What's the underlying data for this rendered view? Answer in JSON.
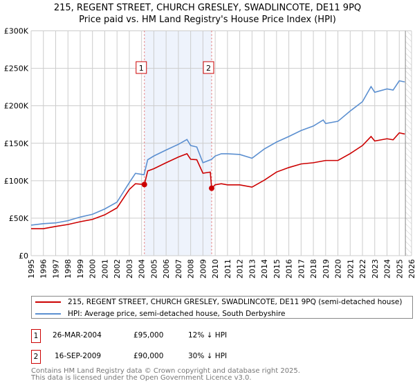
{
  "chart_data": {
    "type": "line",
    "title": "215, REGENT STREET, CHURCH GRESLEY, SWADLINCOTE, DE11 9PQ",
    "subtitle": "Price paid vs. HM Land Registry's House Price Index (HPI)",
    "xlim": [
      1995,
      2026
    ],
    "ylim": [
      0,
      300000
    ],
    "x_ticks": [
      "1995",
      "1996",
      "1997",
      "1998",
      "1999",
      "2000",
      "2001",
      "2002",
      "2003",
      "2004",
      "2005",
      "2006",
      "2007",
      "2008",
      "2009",
      "2010",
      "2011",
      "2012",
      "2013",
      "2014",
      "2015",
      "2016",
      "2017",
      "2018",
      "2019",
      "2020",
      "2021",
      "2022",
      "2023",
      "2024",
      "2025",
      "2026"
    ],
    "y_ticks": [
      {
        "v": 0,
        "label": "£0"
      },
      {
        "v": 50000,
        "label": "£50K"
      },
      {
        "v": 100000,
        "label": "£100K"
      },
      {
        "v": 150000,
        "label": "£150K"
      },
      {
        "v": 200000,
        "label": "£200K"
      },
      {
        "v": 250000,
        "label": "£250K"
      },
      {
        "v": 300000,
        "label": "£300K"
      }
    ],
    "grid": true,
    "series": [
      {
        "name": "215, REGENT STREET, CHURCH GRESLEY, SWADLINCOTE, DE11 9PQ (semi-detached house)",
        "color": "#cc0000",
        "points": [
          [
            1995,
            36000
          ],
          [
            1996,
            36000
          ],
          [
            1997,
            39000
          ],
          [
            1998,
            41600
          ],
          [
            1999,
            45300
          ],
          [
            2000,
            48400
          ],
          [
            2001,
            54500
          ],
          [
            2002,
            63800
          ],
          [
            2003,
            88400
          ],
          [
            2003.5,
            96000
          ],
          [
            2004.23,
            95000
          ],
          [
            2004.5,
            113000
          ],
          [
            2005,
            116000
          ],
          [
            2006,
            124000
          ],
          [
            2007,
            131600
          ],
          [
            2007.7,
            136000
          ],
          [
            2008,
            128600
          ],
          [
            2008.5,
            128000
          ],
          [
            2009,
            110000
          ],
          [
            2009.6,
            111500
          ],
          [
            2009.71,
            90000
          ],
          [
            2010,
            94600
          ],
          [
            2010.5,
            96000
          ],
          [
            2011,
            94500
          ],
          [
            2012,
            94500
          ],
          [
            2013,
            91500
          ],
          [
            2014,
            100700
          ],
          [
            2015,
            111600
          ],
          [
            2016,
            117600
          ],
          [
            2017,
            122400
          ],
          [
            2018,
            124000
          ],
          [
            2019,
            127000
          ],
          [
            2020,
            127000
          ],
          [
            2021,
            136200
          ],
          [
            2022,
            147000
          ],
          [
            2022.7,
            159000
          ],
          [
            2023,
            153000
          ],
          [
            2024,
            156000
          ],
          [
            2024.5,
            154600
          ],
          [
            2025,
            163900
          ],
          [
            2025.45,
            162300
          ]
        ]
      },
      {
        "name": "HPI: Average price, semi-detached house, South Derbyshire",
        "color": "#5b8fd0",
        "points": [
          [
            1995,
            40700
          ],
          [
            1996,
            42700
          ],
          [
            1997,
            43700
          ],
          [
            1998,
            46700
          ],
          [
            1999,
            51500
          ],
          [
            2000,
            55200
          ],
          [
            2001,
            62300
          ],
          [
            2002,
            71500
          ],
          [
            2003,
            97500
          ],
          [
            2003.5,
            109800
          ],
          [
            2004.2,
            108000
          ],
          [
            2004.5,
            128000
          ],
          [
            2005,
            133000
          ],
          [
            2006,
            141000
          ],
          [
            2007,
            148600
          ],
          [
            2007.7,
            155000
          ],
          [
            2008,
            147000
          ],
          [
            2008.5,
            145000
          ],
          [
            2009,
            124000
          ],
          [
            2009.7,
            128500
          ],
          [
            2010,
            133000
          ],
          [
            2010.5,
            136000
          ],
          [
            2011,
            136000
          ],
          [
            2012,
            135000
          ],
          [
            2013,
            130000
          ],
          [
            2014,
            142300
          ],
          [
            2015,
            151600
          ],
          [
            2016,
            159000
          ],
          [
            2017,
            167000
          ],
          [
            2018,
            173000
          ],
          [
            2018.8,
            181000
          ],
          [
            2019,
            176300
          ],
          [
            2020,
            179300
          ],
          [
            2021,
            193000
          ],
          [
            2022,
            205500
          ],
          [
            2022.7,
            225600
          ],
          [
            2023,
            218000
          ],
          [
            2024,
            222500
          ],
          [
            2024.5,
            221000
          ],
          [
            2025,
            233300
          ],
          [
            2025.45,
            231800
          ]
        ]
      }
    ],
    "sales": [
      {
        "label": "1",
        "x": 2004.23,
        "y": 95000
      },
      {
        "label": "2",
        "x": 2009.71,
        "y": 90000
      }
    ],
    "forecast_hatch_from": 2025.5,
    "legend_position": "bottom"
  },
  "legend": {
    "red": "215, REGENT STREET, CHURCH GRESLEY, SWADLINCOTE, DE11 9PQ (semi-detached house)",
    "blue": "HPI: Average price, semi-detached house, South Derbyshire"
  },
  "transactions": [
    {
      "num": "1",
      "date": "26-MAR-2004",
      "price": "£95,000",
      "hpi": "12% ↓ HPI"
    },
    {
      "num": "2",
      "date": "16-SEP-2009",
      "price": "£90,000",
      "hpi": "30% ↓ HPI"
    }
  ],
  "footer": {
    "line1": "Contains HM Land Registry data © Crown copyright and database right 2025.",
    "line2": "This data is licensed under the Open Government Licence v3.0."
  }
}
